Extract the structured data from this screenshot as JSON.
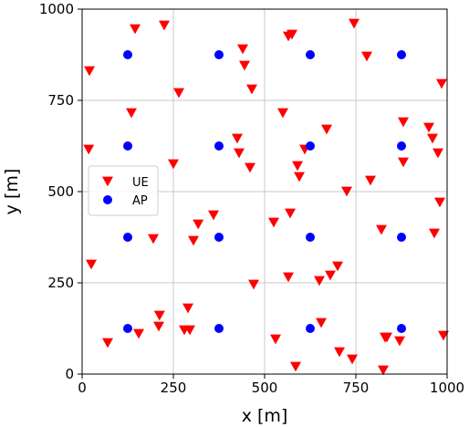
{
  "chart_data": {
    "type": "scatter",
    "xlabel": "x [m]",
    "ylabel": "y [m]",
    "xlim": [
      0,
      1000
    ],
    "ylim": [
      0,
      1000
    ],
    "xticks": [
      0,
      250,
      500,
      750,
      1000
    ],
    "yticks": [
      0,
      250,
      500,
      750,
      1000
    ],
    "grid": true,
    "legend_position": "left-middle",
    "series": [
      {
        "name": "UE",
        "marker": "triangle-down",
        "color": "#ff0000",
        "x": [
          20,
          70,
          135,
          145,
          155,
          195,
          210,
          212,
          225,
          250,
          265,
          280,
          290,
          295,
          305,
          318,
          360,
          425,
          430,
          440,
          445,
          460,
          465,
          470,
          525,
          530,
          550,
          565,
          565,
          570,
          575,
          585,
          590,
          595,
          610,
          650,
          655,
          670,
          680,
          700,
          705,
          725,
          740,
          745,
          780,
          790,
          820,
          825,
          830,
          835,
          870,
          880,
          880,
          950,
          960,
          965,
          975,
          980,
          985,
          990,
          18,
          25
        ],
        "y": [
          830,
          85,
          715,
          945,
          110,
          370,
          130,
          160,
          955,
          575,
          770,
          120,
          180,
          120,
          365,
          410,
          435,
          645,
          605,
          890,
          845,
          565,
          780,
          245,
          415,
          95,
          715,
          265,
          925,
          440,
          930,
          20,
          570,
          540,
          615,
          255,
          140,
          670,
          270,
          295,
          60,
          500,
          40,
          960,
          870,
          530,
          395,
          10,
          100,
          100,
          90,
          690,
          580,
          675,
          645,
          385,
          605,
          470,
          795,
          105,
          615,
          300
        ]
      },
      {
        "name": "AP",
        "marker": "circle",
        "color": "#0000ff",
        "x": [
          125,
          375,
          625,
          875,
          125,
          375,
          625,
          875,
          125,
          375,
          625,
          875,
          125,
          375,
          625,
          875
        ],
        "y": [
          875,
          875,
          875,
          875,
          625,
          625,
          625,
          625,
          375,
          375,
          375,
          375,
          125,
          125,
          125,
          125
        ]
      }
    ]
  }
}
